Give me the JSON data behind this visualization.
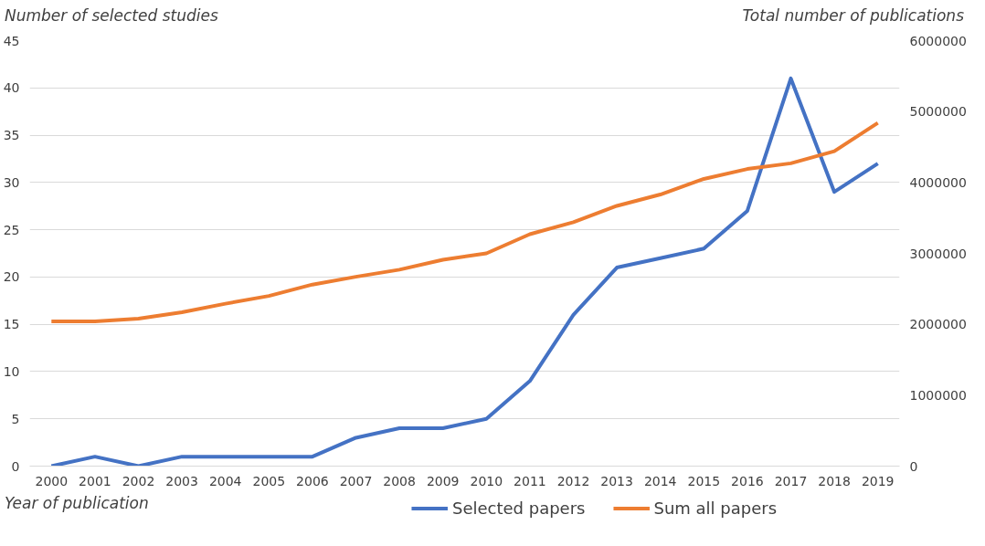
{
  "chart_data": {
    "type": "line",
    "ylabel": "Number of selected studies",
    "y2label": "Total number of publications",
    "xlabel": "Year of publication",
    "categories": [
      "2000",
      "2001",
      "2002",
      "2003",
      "2004",
      "2005",
      "2006",
      "2007",
      "2008",
      "2009",
      "2010",
      "2011",
      "2012",
      "2013",
      "2014",
      "2015",
      "2016",
      "2017",
      "2018",
      "2019"
    ],
    "series": [
      {
        "name": "Selected papers",
        "color": "#4472c4",
        "values": [
          0,
          1,
          0,
          1,
          1,
          1,
          1,
          3,
          4,
          4,
          5,
          9,
          16,
          21,
          22,
          23,
          27,
          41,
          29,
          32
        ]
      },
      {
        "name": "Sum all papers",
        "color": "#ed7d31",
        "axis": "y2",
        "values": [
          2040000,
          2040000,
          2080000,
          2170000,
          2290000,
          2400000,
          2560000,
          2670000,
          2770000,
          2910000,
          3000000,
          3270000,
          3440000,
          3670000,
          3830000,
          4050000,
          4190000,
          4270000,
          4440000,
          4840000
        ]
      }
    ],
    "ylim": [
      0,
      45
    ],
    "yticks": [
      0,
      5,
      10,
      15,
      20,
      25,
      30,
      35,
      40,
      45
    ],
    "y2lim": [
      0,
      6000000
    ],
    "y2ticks": [
      0,
      1000000,
      2000000,
      3000000,
      4000000,
      5000000,
      6000000
    ],
    "grid": "y",
    "legend": "bottom",
    "marker": "none",
    "line_style": "solid"
  }
}
